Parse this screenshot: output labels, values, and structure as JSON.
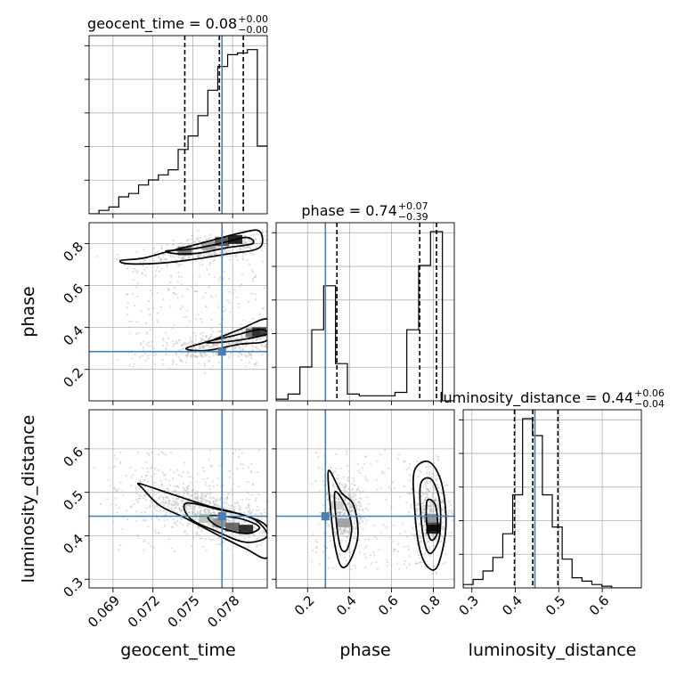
{
  "chart_data": {
    "type": "corner",
    "parameters": [
      {
        "name": "geocent_time",
        "label": "geocent_time",
        "range": [
          0.0672,
          0.0806
        ],
        "ticks": [
          "0.069",
          "0.072",
          "0.075",
          "0.078"
        ],
        "tick_values": [
          0.069,
          0.072,
          0.075,
          0.078
        ]
      },
      {
        "name": "phase",
        "label": "phase",
        "range": [
          0.05,
          0.9
        ],
        "ticks": [
          "0.2",
          "0.4",
          "0.6",
          "0.8"
        ],
        "tick_values": [
          0.2,
          0.4,
          0.6,
          0.8
        ]
      },
      {
        "name": "luminosity_distance",
        "label": "luminosity_distance",
        "range": [
          0.28,
          0.69
        ],
        "ticks": [
          "0.3",
          "0.4",
          "0.5",
          "0.6"
        ],
        "tick_values": [
          0.3,
          0.4,
          0.5,
          0.6
        ]
      }
    ],
    "titles": [
      {
        "prefix": "geocent_time = 0.08",
        "plus": "+0.00",
        "minus": "−0.00"
      },
      {
        "prefix": "phase = 0.74",
        "plus": "+0.07",
        "minus": "−0.39"
      },
      {
        "prefix": "luminosity_distance = 0.44",
        "plus": "+0.06",
        "minus": "−0.04"
      }
    ],
    "truths": {
      "geocent_time": 0.0772,
      "phase": 0.285,
      "luminosity_distance": 0.445
    },
    "quantiles": {
      "geocent_time": [
        0.0744,
        0.077,
        0.0788
      ],
      "phase": [
        0.34,
        0.735,
        0.815
      ],
      "luminosity_distance": [
        0.398,
        0.44,
        0.498
      ]
    },
    "histograms": {
      "geocent_time": [
        0.0,
        0.02,
        0.04,
        0.1,
        0.12,
        0.17,
        0.2,
        0.23,
        0.26,
        0.38,
        0.46,
        0.58,
        0.73,
        0.87,
        0.94,
        0.95,
        0.97,
        0.4
      ],
      "phase": [
        0.01,
        0.04,
        0.2,
        0.42,
        0.68,
        0.22,
        0.04,
        0.03,
        0.03,
        0.03,
        0.05,
        0.42,
        0.8,
        1.0,
        0.0
      ],
      "luminosity_distance": [
        0.02,
        0.05,
        0.1,
        0.18,
        0.32,
        0.55,
        1.0,
        0.9,
        0.55,
        0.36,
        0.17,
        0.06,
        0.04,
        0.02,
        0.01,
        0.0,
        0.0,
        0.0
      ]
    }
  }
}
